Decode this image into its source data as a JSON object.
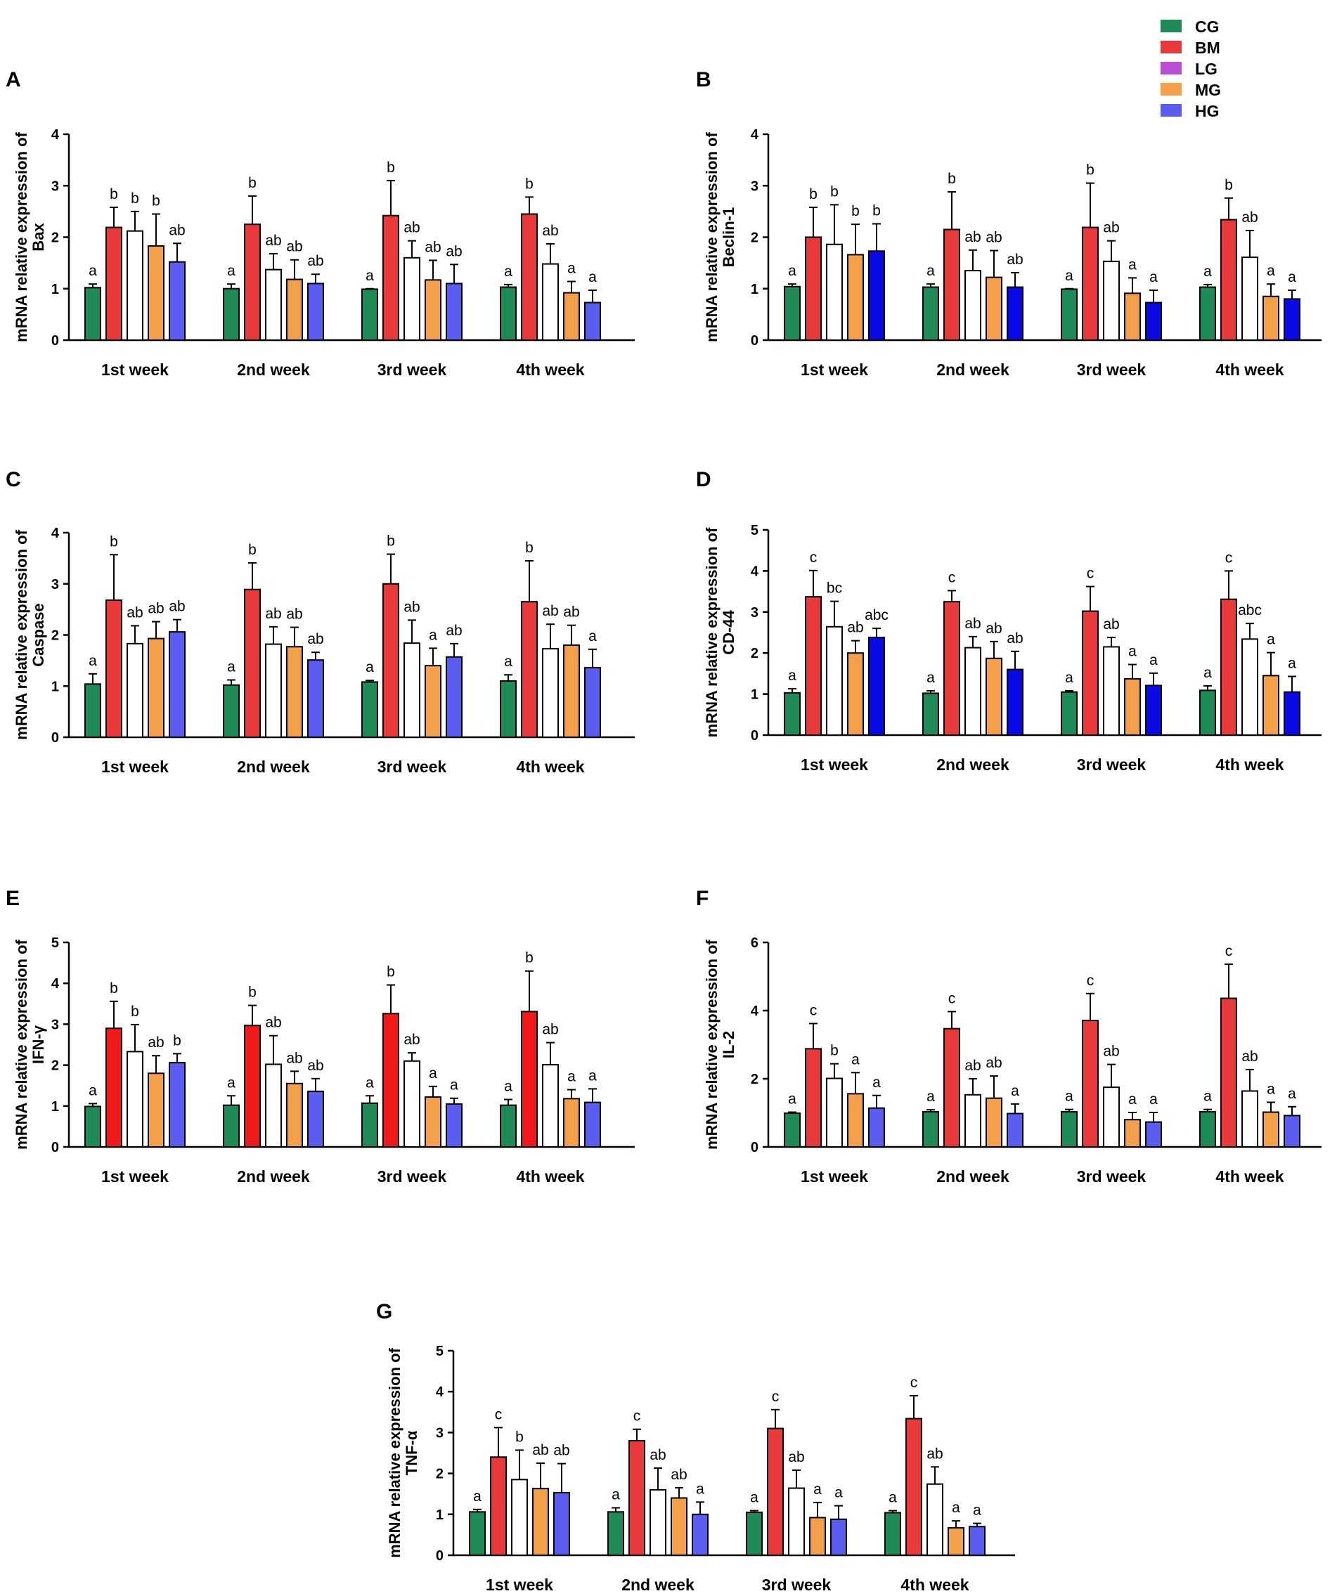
{
  "figure_title": "",
  "legend": [
    {
      "name": "CG",
      "color": "#1e8a55"
    },
    {
      "name": "BM",
      "color": "#e8393b"
    },
    {
      "name": "LG",
      "color": "#b94fd6"
    },
    {
      "name": "MG",
      "color": "#f4a04a"
    },
    {
      "name": "HG",
      "color": "#5b5cf0"
    }
  ],
  "chart_data": [
    {
      "type": "bar",
      "panel": "A",
      "ylabel_line1": "mRNA relative expression of",
      "ylabel_line2": "Bax",
      "categories": [
        "1st week",
        "2nd week",
        "3rd week",
        "4th week"
      ],
      "ylim": [
        0,
        4
      ],
      "yticks": [
        0,
        1,
        2,
        3,
        4
      ],
      "series": [
        {
          "name": "CG",
          "color": "#1e8a55",
          "values": [
            1.02,
            1.0,
            0.99,
            1.03
          ],
          "errors": [
            0.07,
            0.09,
            0.01,
            0.05
          ],
          "letters": [
            "a",
            "a",
            "a",
            "a"
          ]
        },
        {
          "name": "BM",
          "color": "#e8393b",
          "values": [
            2.19,
            2.25,
            2.42,
            2.45
          ],
          "errors": [
            0.39,
            0.55,
            0.68,
            0.33
          ],
          "letters": [
            "b",
            "b",
            "b",
            "b"
          ]
        },
        {
          "name": "LG",
          "color": "#ffffff",
          "values": [
            2.12,
            1.37,
            1.6,
            1.48
          ],
          "errors": [
            0.38,
            0.31,
            0.33,
            0.39
          ],
          "letters": [
            "b",
            "ab",
            "ab",
            "ab"
          ]
        },
        {
          "name": "MG",
          "color": "#f4a04a",
          "values": [
            1.83,
            1.18,
            1.17,
            0.92
          ],
          "errors": [
            0.62,
            0.38,
            0.38,
            0.22
          ],
          "letters": [
            "b",
            "ab",
            "ab",
            "a"
          ]
        },
        {
          "name": "HG",
          "color": "#5b5cf0",
          "values": [
            1.52,
            1.1,
            1.1,
            0.73
          ],
          "errors": [
            0.36,
            0.18,
            0.37,
            0.24
          ],
          "letters": [
            "ab",
            "ab",
            "ab",
            "a"
          ]
        }
      ]
    },
    {
      "type": "bar",
      "panel": "B",
      "ylabel_line1": "mRNA relative expression of",
      "ylabel_line2": "Beclin-1",
      "categories": [
        "1st week",
        "2nd week",
        "3rd week",
        "4th week"
      ],
      "ylim": [
        0,
        4
      ],
      "yticks": [
        0,
        1,
        2,
        3,
        4
      ],
      "series": [
        {
          "name": "CG",
          "color": "#1e8a55",
          "values": [
            1.04,
            1.03,
            0.99,
            1.03
          ],
          "errors": [
            0.05,
            0.06,
            0.01,
            0.05
          ],
          "letters": [
            "a",
            "a",
            "a",
            "a"
          ]
        },
        {
          "name": "BM",
          "color": "#e8393b",
          "values": [
            2.0,
            2.15,
            2.19,
            2.34
          ],
          "errors": [
            0.58,
            0.73,
            0.86,
            0.42
          ],
          "letters": [
            "b",
            "b",
            "b",
            "b"
          ]
        },
        {
          "name": "LG",
          "color": "#ffffff",
          "values": [
            1.86,
            1.35,
            1.53,
            1.61
          ],
          "errors": [
            0.77,
            0.4,
            0.4,
            0.52
          ],
          "letters": [
            "b",
            "ab",
            "ab",
            "ab"
          ]
        },
        {
          "name": "MG",
          "color": "#f4a04a",
          "values": [
            1.66,
            1.22,
            0.91,
            0.85
          ],
          "errors": [
            0.59,
            0.52,
            0.3,
            0.24
          ],
          "letters": [
            "b",
            "ab",
            "a",
            "a"
          ]
        },
        {
          "name": "HG",
          "color": "#0a0ae6",
          "values": [
            1.73,
            1.03,
            0.73,
            0.8
          ],
          "errors": [
            0.53,
            0.28,
            0.24,
            0.17
          ],
          "letters": [
            "b",
            "ab",
            "a",
            "a"
          ]
        }
      ]
    },
    {
      "type": "bar",
      "panel": "C",
      "ylabel_line1": "mRNA relative expression of",
      "ylabel_line2": "Caspase",
      "categories": [
        "1st week",
        "2nd week",
        "3rd week",
        "4th week"
      ],
      "ylim": [
        0,
        4
      ],
      "yticks": [
        0,
        1,
        2,
        3,
        4
      ],
      "series": [
        {
          "name": "CG",
          "color": "#1e8a55",
          "values": [
            1.04,
            1.02,
            1.08,
            1.1
          ],
          "errors": [
            0.2,
            0.1,
            0.03,
            0.12
          ],
          "letters": [
            "a",
            "a",
            "a",
            "a"
          ]
        },
        {
          "name": "BM",
          "color": "#e8393b",
          "values": [
            2.68,
            2.89,
            3.0,
            2.65
          ],
          "errors": [
            0.89,
            0.52,
            0.58,
            0.8
          ],
          "letters": [
            "b",
            "b",
            "b",
            "b"
          ]
        },
        {
          "name": "LG",
          "color": "#ffffff",
          "values": [
            1.83,
            1.82,
            1.84,
            1.73
          ],
          "errors": [
            0.35,
            0.34,
            0.45,
            0.48
          ],
          "letters": [
            "ab",
            "ab",
            "ab",
            "ab"
          ]
        },
        {
          "name": "MG",
          "color": "#f4a04a",
          "values": [
            1.93,
            1.77,
            1.4,
            1.8
          ],
          "errors": [
            0.33,
            0.38,
            0.34,
            0.39
          ],
          "letters": [
            "ab",
            "ab",
            "a",
            "ab"
          ]
        },
        {
          "name": "HG",
          "color": "#5b5cf0",
          "values": [
            2.06,
            1.51,
            1.57,
            1.36
          ],
          "errors": [
            0.24,
            0.15,
            0.26,
            0.36
          ],
          "letters": [
            "ab",
            "ab",
            "ab",
            "a"
          ]
        }
      ]
    },
    {
      "type": "bar",
      "panel": "D",
      "ylabel_line1": "mRNA relative expression of",
      "ylabel_line2": "CD-44",
      "categories": [
        "1st week",
        "2nd week",
        "3rd week",
        "4th week"
      ],
      "ylim": [
        0,
        5
      ],
      "yticks": [
        0,
        1,
        2,
        3,
        4,
        5
      ],
      "series": [
        {
          "name": "CG",
          "color": "#1e8a55",
          "values": [
            1.03,
            1.02,
            1.05,
            1.09
          ],
          "errors": [
            0.1,
            0.06,
            0.03,
            0.11
          ],
          "letters": [
            "a",
            "a",
            "a",
            "a"
          ]
        },
        {
          "name": "BM",
          "color": "#e8393b",
          "values": [
            3.37,
            3.25,
            3.02,
            3.31
          ],
          "errors": [
            0.64,
            0.27,
            0.6,
            0.69
          ],
          "letters": [
            "c",
            "c",
            "c",
            "c"
          ]
        },
        {
          "name": "LG",
          "color": "#ffffff",
          "values": [
            2.64,
            2.13,
            2.15,
            2.34
          ],
          "errors": [
            0.62,
            0.27,
            0.23,
            0.38
          ],
          "letters": [
            "bc",
            "ab",
            "ab",
            "abc"
          ]
        },
        {
          "name": "MG",
          "color": "#f4a04a",
          "values": [
            2.0,
            1.87,
            1.37,
            1.45
          ],
          "errors": [
            0.3,
            0.41,
            0.35,
            0.56
          ],
          "letters": [
            "ab",
            "ab",
            "a",
            "a"
          ]
        },
        {
          "name": "HG",
          "color": "#0a0ae6",
          "values": [
            2.38,
            1.6,
            1.21,
            1.05
          ],
          "errors": [
            0.22,
            0.44,
            0.3,
            0.38
          ],
          "letters": [
            "abc",
            "ab",
            "a",
            "a"
          ]
        }
      ]
    },
    {
      "type": "bar",
      "panel": "E",
      "ylabel_line1": "mRNA relative expression of",
      "ylabel_line2": "IFN-γ",
      "categories": [
        "1st week",
        "2nd week",
        "3rd week",
        "4th week"
      ],
      "ylim": [
        0,
        5
      ],
      "yticks": [
        0,
        1,
        2,
        3,
        4,
        5
      ],
      "series": [
        {
          "name": "CG",
          "color": "#1e8a55",
          "values": [
            0.99,
            1.02,
            1.07,
            1.02
          ],
          "errors": [
            0.07,
            0.23,
            0.18,
            0.14
          ],
          "letters": [
            "a",
            "a",
            "a",
            "a"
          ]
        },
        {
          "name": "BM",
          "color": "#f01a1a",
          "values": [
            2.9,
            2.97,
            3.26,
            3.31
          ],
          "errors": [
            0.66,
            0.49,
            0.7,
            0.99
          ],
          "letters": [
            "b",
            "b",
            "b",
            "b"
          ]
        },
        {
          "name": "LG",
          "color": "#ffffff",
          "values": [
            2.33,
            2.02,
            2.1,
            2.01
          ],
          "errors": [
            0.66,
            0.7,
            0.2,
            0.54
          ],
          "letters": [
            "b",
            "ab",
            "ab",
            "ab"
          ]
        },
        {
          "name": "MG",
          "color": "#f4a04a",
          "values": [
            1.8,
            1.55,
            1.22,
            1.18
          ],
          "errors": [
            0.43,
            0.3,
            0.26,
            0.22
          ],
          "letters": [
            "ab",
            "ab",
            "a",
            "a"
          ]
        },
        {
          "name": "HG",
          "color": "#5b5cf0",
          "values": [
            2.06,
            1.36,
            1.05,
            1.09
          ],
          "errors": [
            0.22,
            0.31,
            0.14,
            0.33
          ],
          "letters": [
            "b",
            "ab",
            "a",
            "a"
          ]
        }
      ]
    },
    {
      "type": "bar",
      "panel": "F",
      "ylabel_line1": "mRNA relative expression of",
      "ylabel_line2": "IL-2",
      "categories": [
        "1st week",
        "2nd week",
        "3rd week",
        "4th week"
      ],
      "ylim": [
        0,
        6
      ],
      "yticks": [
        0,
        2,
        4,
        6
      ],
      "series": [
        {
          "name": "CG",
          "color": "#1e8a55",
          "values": [
            0.99,
            1.03,
            1.03,
            1.03
          ],
          "errors": [
            0.03,
            0.06,
            0.07,
            0.07
          ],
          "letters": [
            "a",
            "a",
            "a",
            "a"
          ]
        },
        {
          "name": "BM",
          "color": "#e8393b",
          "values": [
            2.88,
            3.47,
            3.71,
            4.36
          ],
          "errors": [
            0.74,
            0.5,
            0.79,
            1.0
          ],
          "letters": [
            "c",
            "c",
            "c",
            "c"
          ]
        },
        {
          "name": "LG",
          "color": "#ffffff",
          "values": [
            2.01,
            1.53,
            1.75,
            1.64
          ],
          "errors": [
            0.43,
            0.47,
            0.67,
            0.63
          ],
          "letters": [
            "b",
            "ab",
            "ab",
            "ab"
          ]
        },
        {
          "name": "MG",
          "color": "#f4a04a",
          "values": [
            1.56,
            1.43,
            0.8,
            1.02
          ],
          "errors": [
            0.62,
            0.65,
            0.21,
            0.29
          ],
          "letters": [
            "a",
            "ab",
            "a",
            "a"
          ]
        },
        {
          "name": "HG",
          "color": "#5b5cf0",
          "values": [
            1.14,
            0.98,
            0.73,
            0.92
          ],
          "errors": [
            0.37,
            0.28,
            0.28,
            0.26
          ],
          "letters": [
            "a",
            "a",
            "a",
            "a"
          ]
        }
      ]
    },
    {
      "type": "bar",
      "panel": "G",
      "ylabel_line1": "mRNA relative expression of",
      "ylabel_line2": "TNF-α",
      "categories": [
        "1st week",
        "2nd week",
        "3rd week",
        "4th week"
      ],
      "ylim": [
        0,
        5
      ],
      "yticks": [
        0,
        1,
        2,
        3,
        4,
        5
      ],
      "series": [
        {
          "name": "CG",
          "color": "#1e8a55",
          "values": [
            1.06,
            1.06,
            1.05,
            1.04
          ],
          "errors": [
            0.06,
            0.1,
            0.04,
            0.05
          ],
          "letters": [
            "a",
            "a",
            "a",
            "a"
          ]
        },
        {
          "name": "BM",
          "color": "#e8393b",
          "values": [
            2.4,
            2.8,
            3.1,
            3.34
          ],
          "errors": [
            0.72,
            0.28,
            0.46,
            0.56
          ],
          "letters": [
            "c",
            "c",
            "c",
            "c"
          ]
        },
        {
          "name": "LG",
          "color": "#ffffff",
          "values": [
            1.85,
            1.6,
            1.64,
            1.74
          ],
          "errors": [
            0.72,
            0.53,
            0.44,
            0.42
          ],
          "letters": [
            "b",
            "ab",
            "ab",
            "ab"
          ]
        },
        {
          "name": "MG",
          "color": "#f4a04a",
          "values": [
            1.63,
            1.4,
            0.92,
            0.67
          ],
          "errors": [
            0.62,
            0.25,
            0.37,
            0.17
          ],
          "letters": [
            "ab",
            "ab",
            "a",
            "a"
          ]
        },
        {
          "name": "HG",
          "color": "#5b5cf0",
          "values": [
            1.53,
            1.0,
            0.88,
            0.7
          ],
          "errors": [
            0.71,
            0.3,
            0.33,
            0.08
          ],
          "letters": [
            "ab",
            "a",
            "a",
            "a"
          ]
        }
      ]
    }
  ]
}
